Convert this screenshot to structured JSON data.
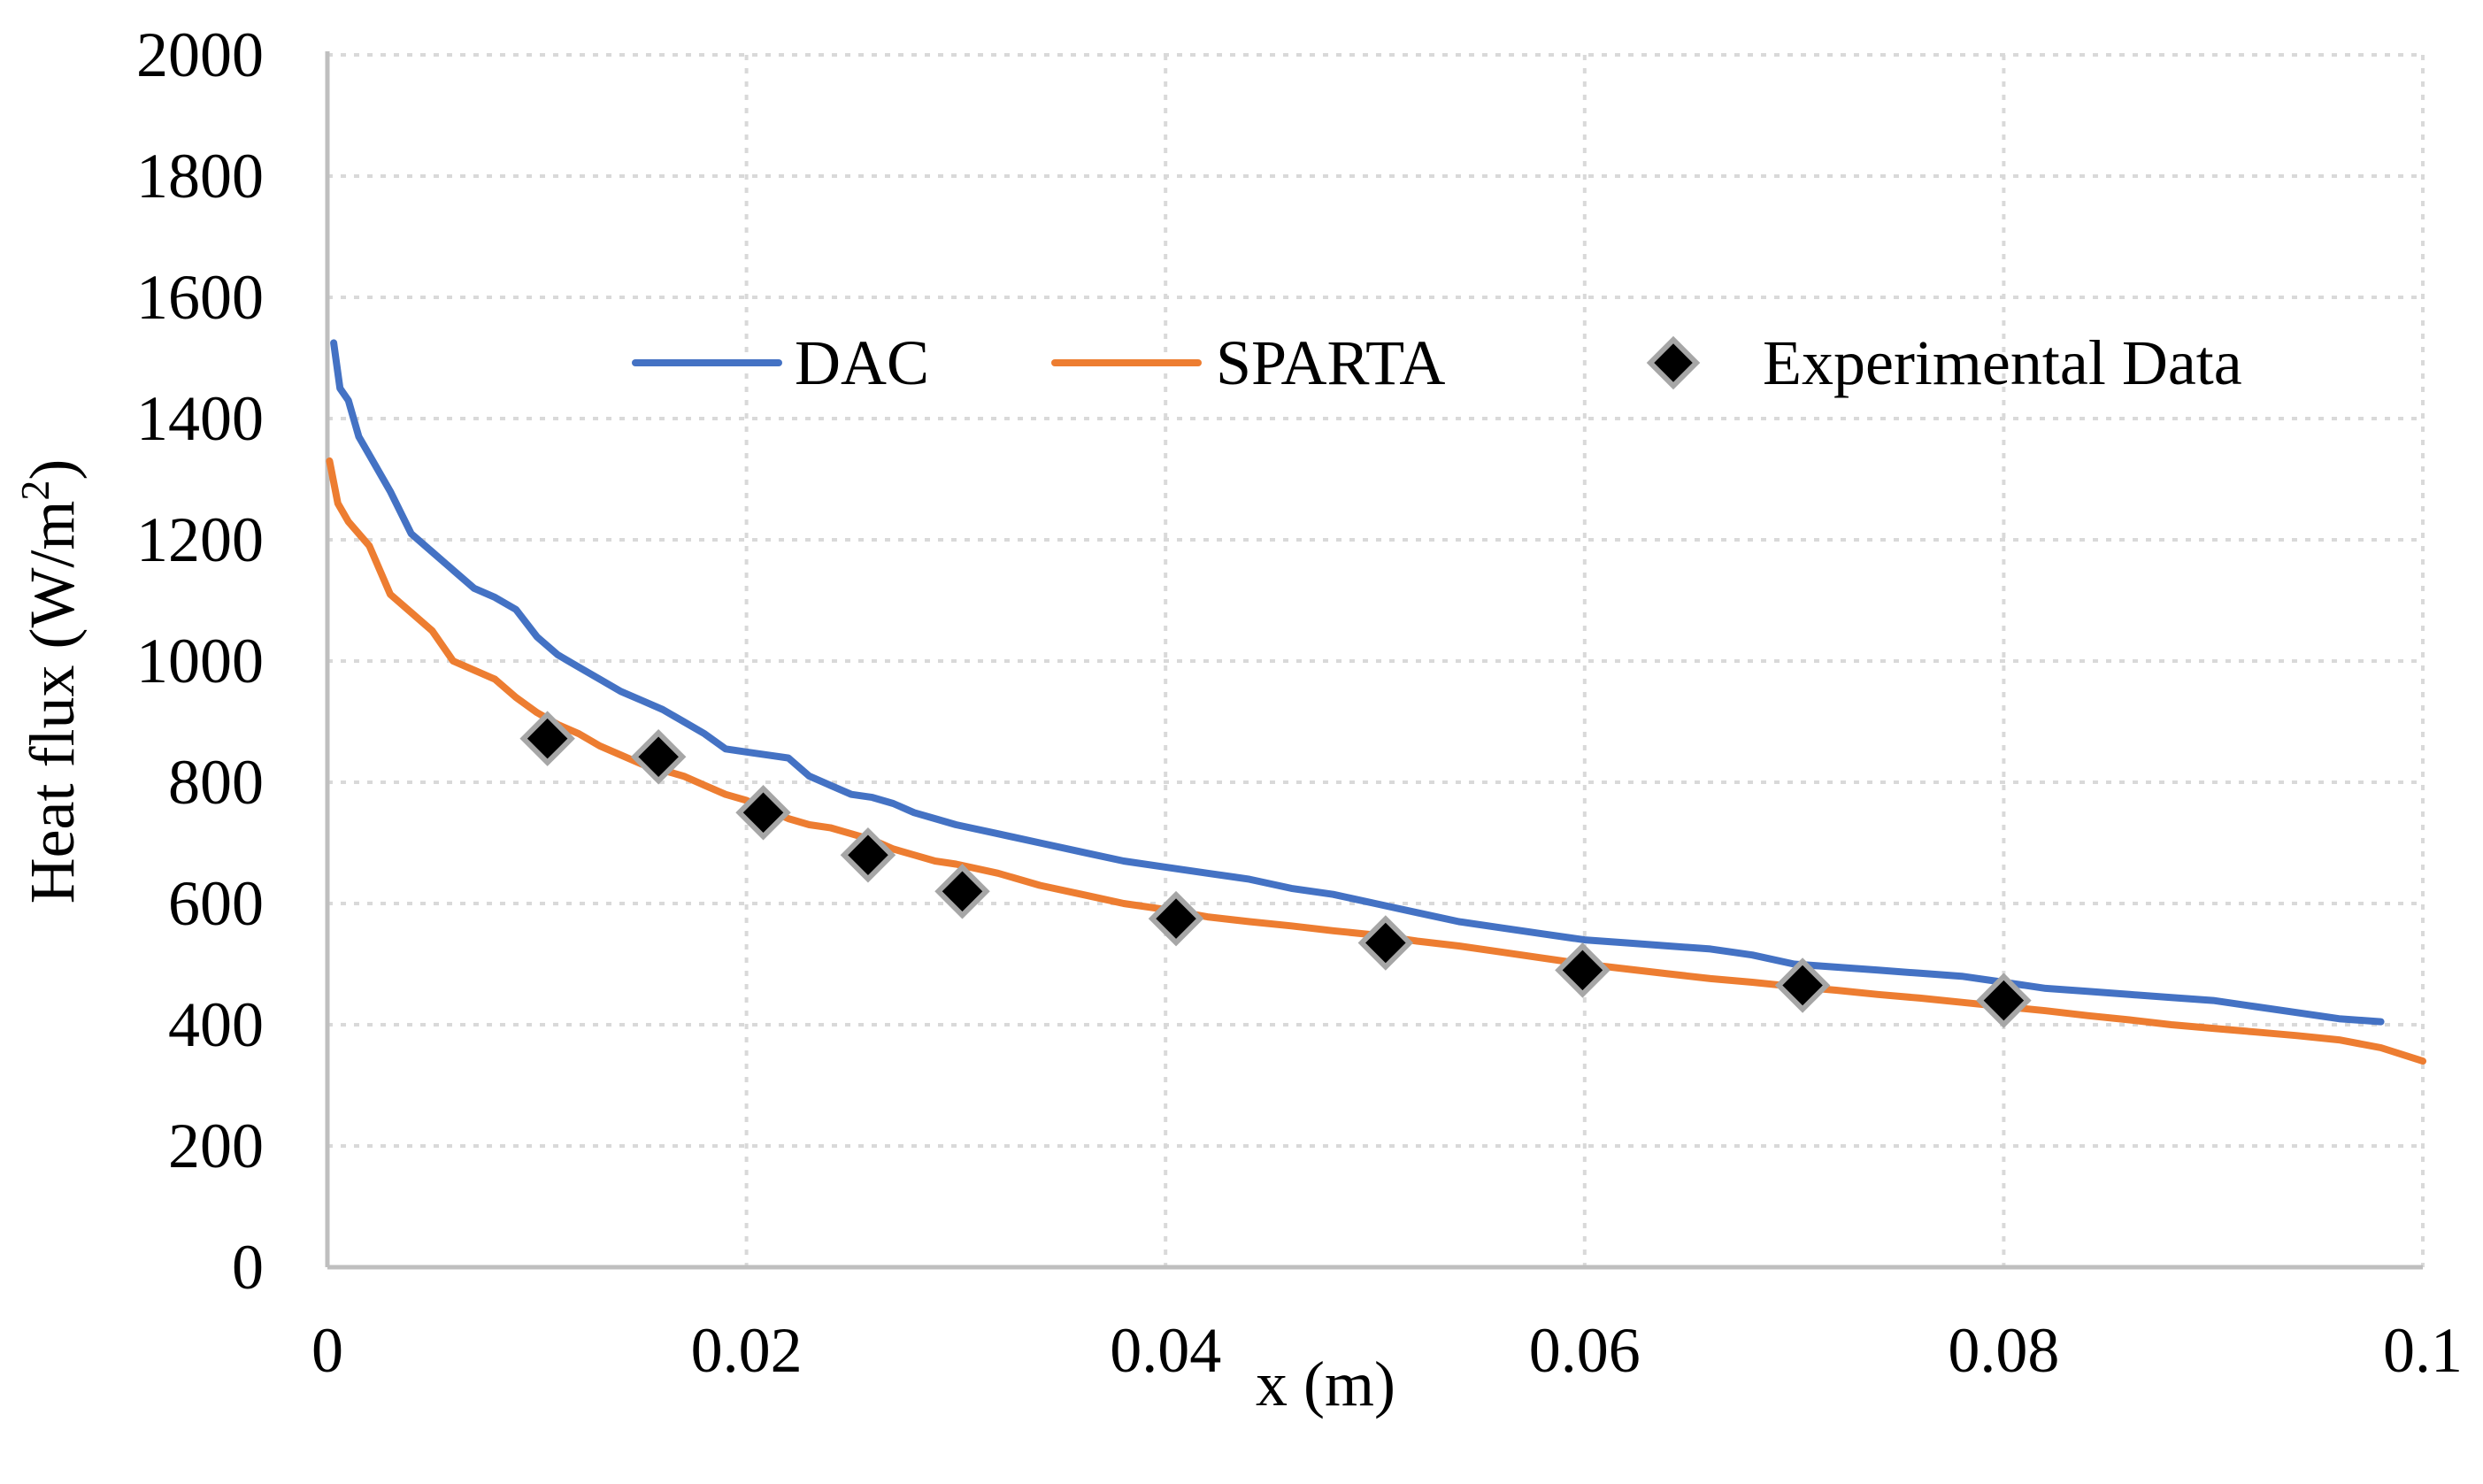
{
  "chart_data": {
    "type": "line",
    "xlabel": "x (m)",
    "ylabel": "Heat flux (W/m",
    "ylabel_sup": "2",
    "ylabel_close": ")",
    "xlim": [
      0,
      0.1
    ],
    "ylim": [
      0,
      2000
    ],
    "x_ticks": [
      0,
      0.02,
      0.04,
      0.06,
      0.08,
      0.1
    ],
    "x_tick_labels": [
      "0",
      "0.02",
      "0.04",
      "0.06",
      "0.08",
      "0.1"
    ],
    "y_ticks": [
      0,
      200,
      400,
      600,
      800,
      1000,
      1200,
      1400,
      1600,
      1800,
      2000
    ],
    "y_tick_labels": [
      "0",
      "200",
      "400",
      "600",
      "800",
      "1000",
      "1200",
      "1400",
      "1600",
      "1800",
      "2000"
    ],
    "grid": true,
    "legend_position": "top-center",
    "series": [
      {
        "name": "DAC",
        "kind": "line",
        "color": "#4472c4",
        "x": [
          0.0003,
          0.0006,
          0.001,
          0.0015,
          0.002,
          0.003,
          0.004,
          0.005,
          0.006,
          0.007,
          0.008,
          0.009,
          0.01,
          0.011,
          0.012,
          0.013,
          0.014,
          0.015,
          0.016,
          0.017,
          0.018,
          0.019,
          0.02,
          0.021,
          0.022,
          0.023,
          0.024,
          0.025,
          0.026,
          0.027,
          0.028,
          0.029,
          0.03,
          0.032,
          0.034,
          0.036,
          0.038,
          0.04,
          0.042,
          0.044,
          0.046,
          0.048,
          0.05,
          0.052,
          0.054,
          0.056,
          0.058,
          0.06,
          0.062,
          0.064,
          0.066,
          0.068,
          0.07,
          0.072,
          0.074,
          0.076,
          0.078,
          0.08,
          0.082,
          0.084,
          0.086,
          0.088,
          0.09,
          0.092,
          0.094,
          0.096,
          0.098
        ],
        "values": [
          1525,
          1450,
          1430,
          1370,
          1340,
          1280,
          1210,
          1180,
          1150,
          1120,
          1105,
          1085,
          1040,
          1010,
          990,
          970,
          950,
          935,
          920,
          900,
          880,
          855,
          850,
          845,
          840,
          810,
          795,
          780,
          775,
          765,
          750,
          740,
          730,
          715,
          700,
          685,
          670,
          660,
          650,
          640,
          625,
          615,
          600,
          585,
          570,
          560,
          550,
          540,
          535,
          530,
          525,
          515,
          500,
          495,
          490,
          485,
          480,
          470,
          460,
          455,
          450,
          445,
          440,
          430,
          420,
          410,
          405
        ]
      },
      {
        "name": "SPARTA",
        "kind": "line",
        "color": "#ed7d31",
        "x": [
          0.0001,
          0.0005,
          0.001,
          0.002,
          0.003,
          0.004,
          0.005,
          0.006,
          0.007,
          0.008,
          0.009,
          0.01,
          0.011,
          0.012,
          0.013,
          0.014,
          0.015,
          0.016,
          0.017,
          0.018,
          0.019,
          0.02,
          0.021,
          0.022,
          0.023,
          0.024,
          0.025,
          0.026,
          0.027,
          0.028,
          0.029,
          0.03,
          0.032,
          0.034,
          0.036,
          0.038,
          0.04,
          0.042,
          0.044,
          0.046,
          0.048,
          0.05,
          0.052,
          0.054,
          0.056,
          0.058,
          0.06,
          0.062,
          0.064,
          0.066,
          0.068,
          0.07,
          0.072,
          0.074,
          0.076,
          0.078,
          0.08,
          0.082,
          0.084,
          0.086,
          0.088,
          0.09,
          0.092,
          0.094,
          0.096,
          0.098,
          0.1
        ],
        "values": [
          1330,
          1260,
          1230,
          1190,
          1110,
          1080,
          1050,
          1000,
          985,
          970,
          940,
          915,
          895,
          880,
          860,
          845,
          830,
          820,
          810,
          795,
          780,
          770,
          755,
          740,
          730,
          725,
          715,
          705,
          690,
          680,
          670,
          665,
          650,
          630,
          615,
          600,
          590,
          578,
          570,
          563,
          555,
          548,
          538,
          530,
          520,
          510,
          500,
          492,
          484,
          476,
          470,
          463,
          457,
          450,
          444,
          437,
          430,
          423,
          415,
          408,
          400,
          394,
          388,
          382,
          375,
          362,
          340
        ]
      },
      {
        "name": "Experimental Data",
        "kind": "scatter",
        "marker": "diamond",
        "color": "#000000",
        "edge_color": "#a6a6a6",
        "x": [
          0.0105,
          0.0158,
          0.0208,
          0.0258,
          0.0303,
          0.0405,
          0.0505,
          0.0599,
          0.0704,
          0.08
        ],
        "values": [
          872,
          842,
          750,
          680,
          620,
          575,
          535,
          490,
          465,
          440
        ]
      }
    ]
  }
}
